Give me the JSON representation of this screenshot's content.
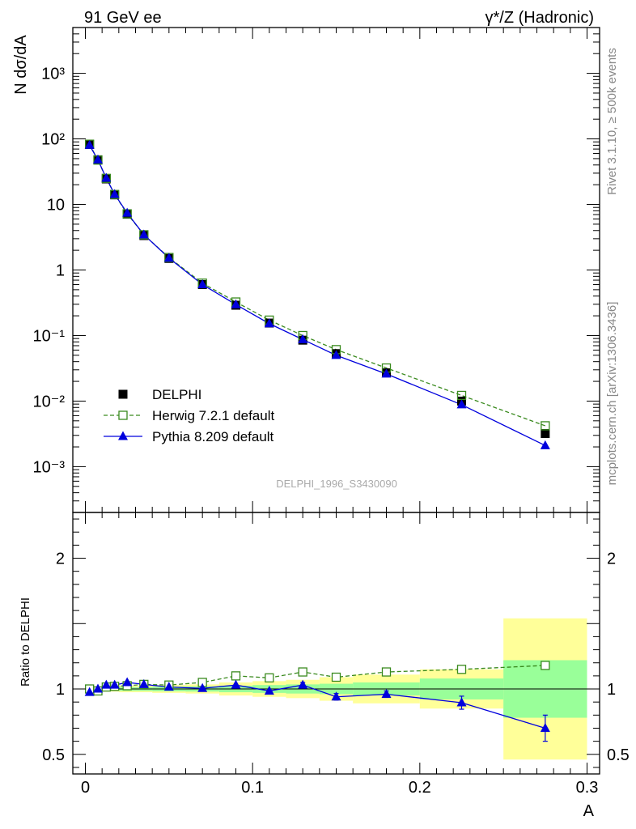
{
  "header": {
    "left_title": "91 GeV ee",
    "right_title": "γ*/Z (Hadronic)"
  },
  "side_labels": {
    "rivet": "Rivet 3.1.10, ≥ 500k events",
    "mcplots": "mcplots.cern.ch [arXiv:1306.3436]"
  },
  "watermark": "DELPHI_1996_S3430090",
  "colors": {
    "data": "#000000",
    "herwig": "#3a8a1e",
    "pythia": "#0000dd",
    "band_inner": "#99ff99",
    "band_outer": "#ffff99"
  },
  "chart_data": [
    {
      "type": "scatter",
      "panel": "main",
      "ylabel": "N dσ/dA",
      "yscale": "log",
      "ylim": [
        0.0002,
        5000
      ],
      "xlim": [
        -0.0075,
        0.3075
      ],
      "ytick_labels": [
        "10⁻³",
        "10⁻²",
        "10⁻¹",
        "1",
        "10",
        "10²",
        "10³"
      ],
      "legend_position": "lower-left",
      "series": [
        {
          "name": "DELPHI",
          "marker": "filled-square",
          "x": [
            0.0025,
            0.0075,
            0.0125,
            0.0175,
            0.025,
            0.035,
            0.05,
            0.07,
            0.09,
            0.11,
            0.13,
            0.15,
            0.18,
            0.225,
            0.275
          ],
          "y": [
            82,
            48,
            24.5,
            14,
            7.1,
            3.35,
            1.5,
            0.6,
            0.29,
            0.155,
            0.085,
            0.053,
            0.027,
            0.01,
            0.0032
          ]
        },
        {
          "name": "Herwig 7.2.1 default",
          "marker": "open-square",
          "line": "dashed",
          "x": [
            0.0025,
            0.0075,
            0.0125,
            0.0175,
            0.025,
            0.035,
            0.05,
            0.07,
            0.09,
            0.11,
            0.13,
            0.15,
            0.18,
            0.225,
            0.275
          ],
          "y": [
            83,
            47.5,
            25,
            14.2,
            7.2,
            3.45,
            1.55,
            0.63,
            0.325,
            0.172,
            0.1,
            0.061,
            0.032,
            0.0122,
            0.0042
          ]
        },
        {
          "name": "Pythia 8.209 default",
          "marker": "filled-triangle",
          "line": "solid",
          "x": [
            0.0025,
            0.0075,
            0.0125,
            0.0175,
            0.025,
            0.035,
            0.05,
            0.07,
            0.09,
            0.11,
            0.13,
            0.15,
            0.18,
            0.225,
            0.275
          ],
          "y": [
            80,
            48,
            25.2,
            14.3,
            7.4,
            3.45,
            1.52,
            0.6,
            0.297,
            0.152,
            0.087,
            0.05,
            0.026,
            0.0088,
            0.0021
          ]
        }
      ]
    },
    {
      "type": "scatter",
      "panel": "ratio",
      "ylabel": "Ratio to DELPHI",
      "xlabel": "A",
      "ylim": [
        0.35,
        2.35
      ],
      "xlim": [
        -0.0075,
        0.3075
      ],
      "yticks": [
        0.5,
        1,
        2
      ],
      "ytick_labels": [
        "0.5",
        "1",
        "2"
      ],
      "xticks": [
        0,
        0.1,
        0.2,
        0.3
      ],
      "xtick_labels": [
        "0",
        "0.1",
        "0.2",
        "0.3"
      ],
      "bands": {
        "x_low": [
          0,
          0.005,
          0.01,
          0.015,
          0.02,
          0.03,
          0.04,
          0.06,
          0.08,
          0.1,
          0.12,
          0.14,
          0.16,
          0.2,
          0.25
        ],
        "x_high": [
          0.005,
          0.01,
          0.015,
          0.02,
          0.03,
          0.04,
          0.06,
          0.08,
          0.1,
          0.12,
          0.14,
          0.16,
          0.2,
          0.25,
          0.3
        ],
        "inner_half_width": [
          0.01,
          0.01,
          0.012,
          0.012,
          0.015,
          0.015,
          0.018,
          0.02,
          0.025,
          0.03,
          0.035,
          0.04,
          0.05,
          0.08,
          0.22
        ],
        "outer_half_width": [
          0.015,
          0.015,
          0.02,
          0.02,
          0.025,
          0.025,
          0.03,
          0.035,
          0.05,
          0.06,
          0.07,
          0.09,
          0.11,
          0.15,
          0.54
        ]
      },
      "series": [
        {
          "name": "Herwig 7.2.1 default",
          "marker": "open-square",
          "line": "dashed",
          "x": [
            0.0025,
            0.0075,
            0.0125,
            0.0175,
            0.025,
            0.035,
            0.05,
            0.07,
            0.09,
            0.11,
            0.13,
            0.15,
            0.18,
            0.225,
            0.275
          ],
          "y": [
            1.0,
            0.985,
            1.015,
            1.02,
            1.025,
            1.035,
            1.03,
            1.05,
            1.1,
            1.085,
            1.13,
            1.09,
            1.13,
            1.15,
            1.18
          ],
          "yerr": [
            0,
            0,
            0,
            0,
            0,
            0,
            0,
            0,
            0,
            0,
            0,
            0,
            0,
            0.015,
            0.025
          ]
        },
        {
          "name": "Pythia 8.209 default",
          "marker": "filled-triangle",
          "line": "solid",
          "x": [
            0.0025,
            0.0075,
            0.0125,
            0.0175,
            0.025,
            0.035,
            0.05,
            0.07,
            0.09,
            0.11,
            0.13,
            0.15,
            0.18,
            0.225,
            0.275
          ],
          "y": [
            0.975,
            1.0,
            1.03,
            1.03,
            1.05,
            1.035,
            1.015,
            1.005,
            1.03,
            0.985,
            1.03,
            0.94,
            0.96,
            0.895,
            0.7
          ],
          "yerr": [
            0,
            0,
            0,
            0,
            0,
            0,
            0,
            0,
            0,
            0,
            0.02,
            0.025,
            0.025,
            0.05,
            0.1
          ]
        }
      ]
    }
  ]
}
